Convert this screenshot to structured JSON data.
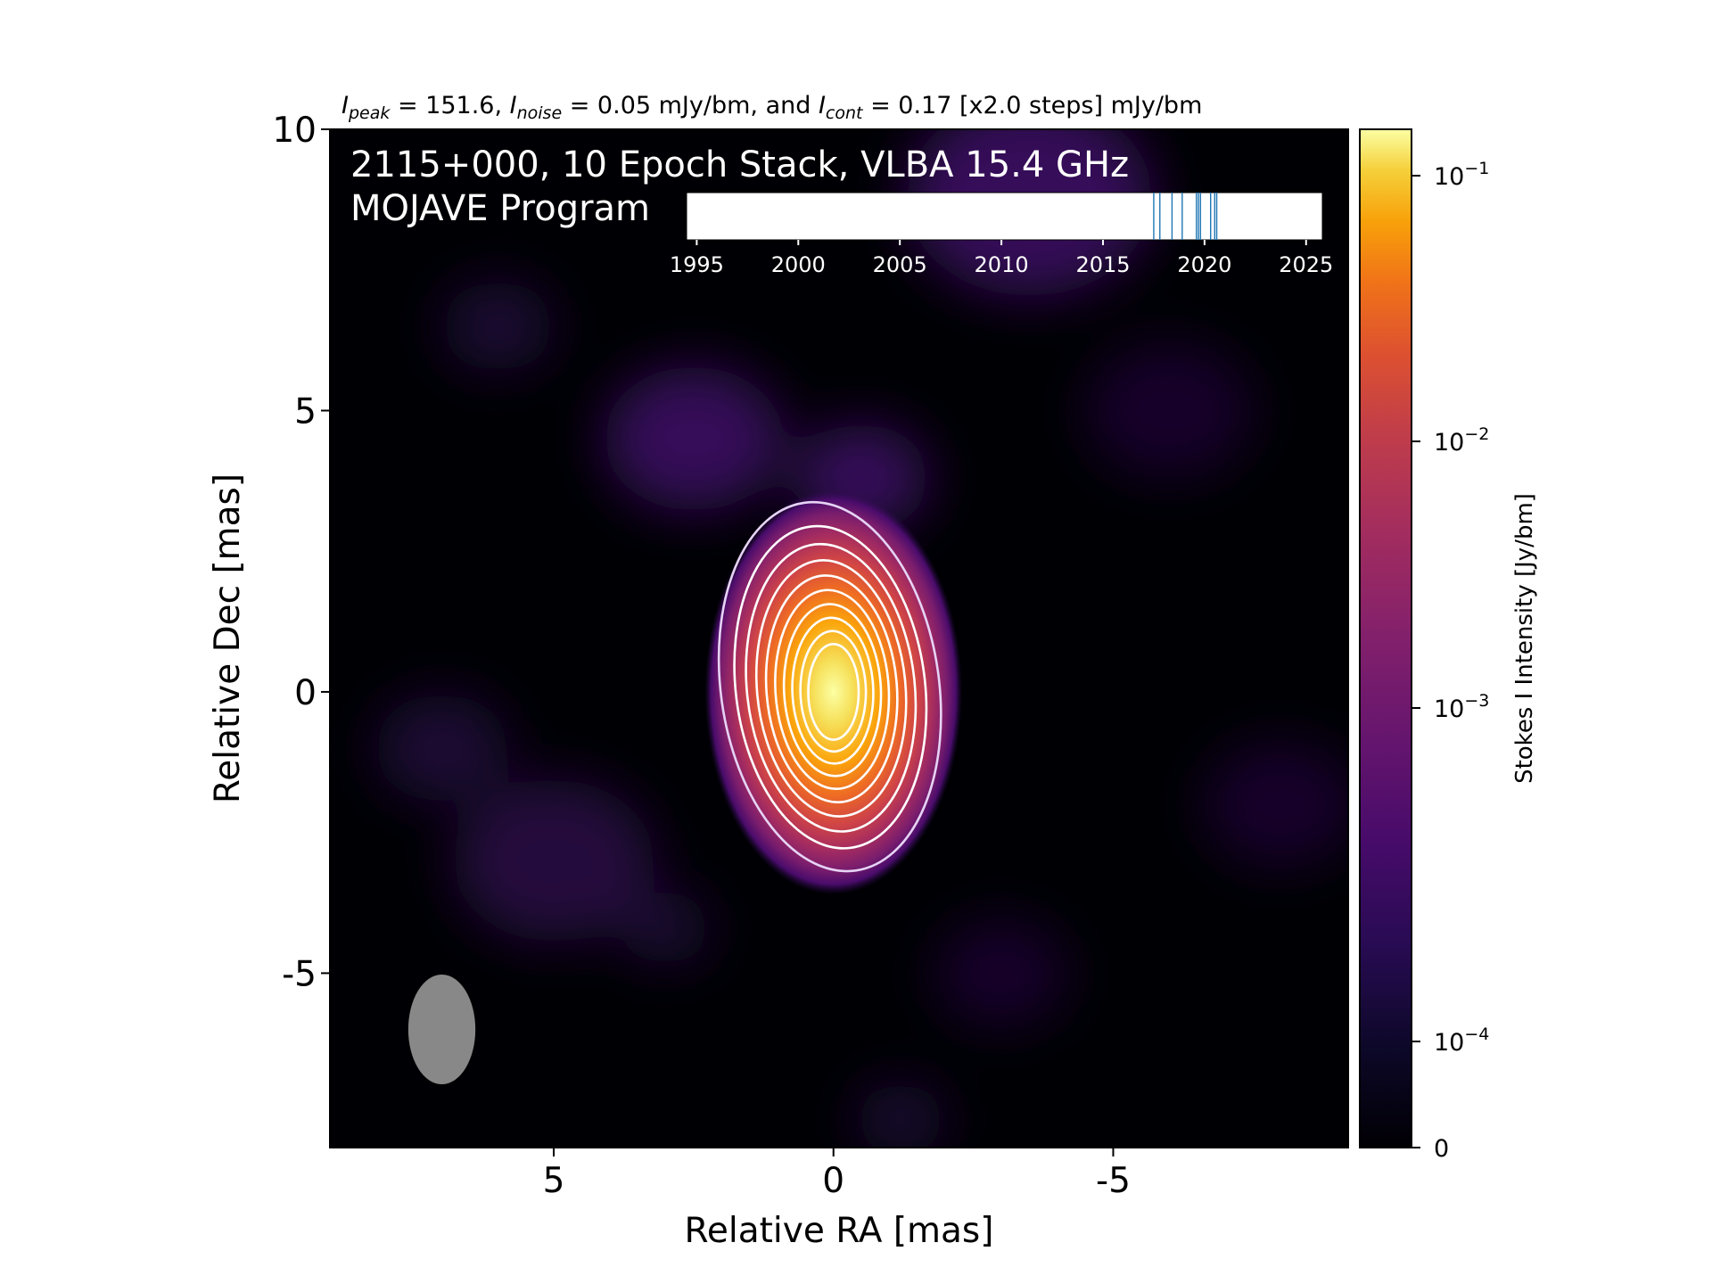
{
  "chart_data": {
    "type": "heatmap",
    "title_parts": {
      "peak_sym": "I",
      "peak_sub": "peak",
      "peak_val": " = 151.6, ",
      "noise_sym": "I",
      "noise_sub": "noise",
      "noise_val": " = 0.05 mJy/bm, and ",
      "cont_sym": "I",
      "cont_sub": "cont",
      "cont_val": " = 0.17 [x2.0 steps] mJy/bm"
    },
    "annotation_line1": "2115+000, 10 Epoch Stack, VLBA 15.4 GHz",
    "annotation_line2": "MOJAVE Program",
    "xlabel": "Relative RA [mas]",
    "ylabel": "Relative Dec [mas]",
    "xlim": [
      9.0,
      -9.2
    ],
    "ylim": [
      -8.1,
      10.0
    ],
    "x_ticks": [
      5,
      0,
      -5
    ],
    "x_tick_labels": [
      "5",
      "0",
      "-5"
    ],
    "y_ticks": [
      10,
      5,
      0,
      -5
    ],
    "y_tick_labels": [
      "10",
      "5",
      "0",
      "-5"
    ],
    "colormap": "inferno",
    "colorbar": {
      "label": "Stokes I Intensity [Jy/bm]",
      "scale": "log",
      "ticks": [
        {
          "value": 0.1,
          "base": "10",
          "exp": "−1"
        },
        {
          "value": 0.01,
          "base": "10",
          "exp": "−2"
        },
        {
          "value": 0.001,
          "base": "10",
          "exp": "−3"
        },
        {
          "value": 0.0001,
          "base": "10",
          "exp": "−4"
        },
        {
          "value": 0,
          "base": "0",
          "exp": ""
        }
      ]
    },
    "source": {
      "ra": 0,
      "dec": 0,
      "peak_jy_per_bm": 0.1516,
      "major_mas": 2.4,
      "minor_mas": 1.5
    },
    "contours_mjy_per_bm": [
      0.17,
      0.34,
      0.68,
      1.36,
      2.72,
      5.44,
      10.88,
      21.76,
      43.52,
      87.04
    ],
    "beam": {
      "ra": 7.0,
      "dec": -6.0,
      "major_mas": 1.95,
      "minor_mas": 1.2,
      "pa_deg": 0
    },
    "epochs": {
      "axis_range": [
        1994.5,
        2025.8
      ],
      "tick_labels": [
        "1995",
        "2000",
        "2005",
        "2010",
        "2015",
        "2020",
        "2025"
      ],
      "tick_values": [
        1995,
        2000,
        2005,
        2010,
        2015,
        2020,
        2025
      ],
      "dates": [
        2017.5,
        2017.8,
        2018.4,
        2018.9,
        2019.6,
        2019.7,
        2019.8,
        2020.3,
        2020.5,
        2020.6
      ]
    }
  },
  "colors": {
    "contour": "#ffffff",
    "epoch_line": "#1f77b4",
    "beam": "#888888"
  }
}
